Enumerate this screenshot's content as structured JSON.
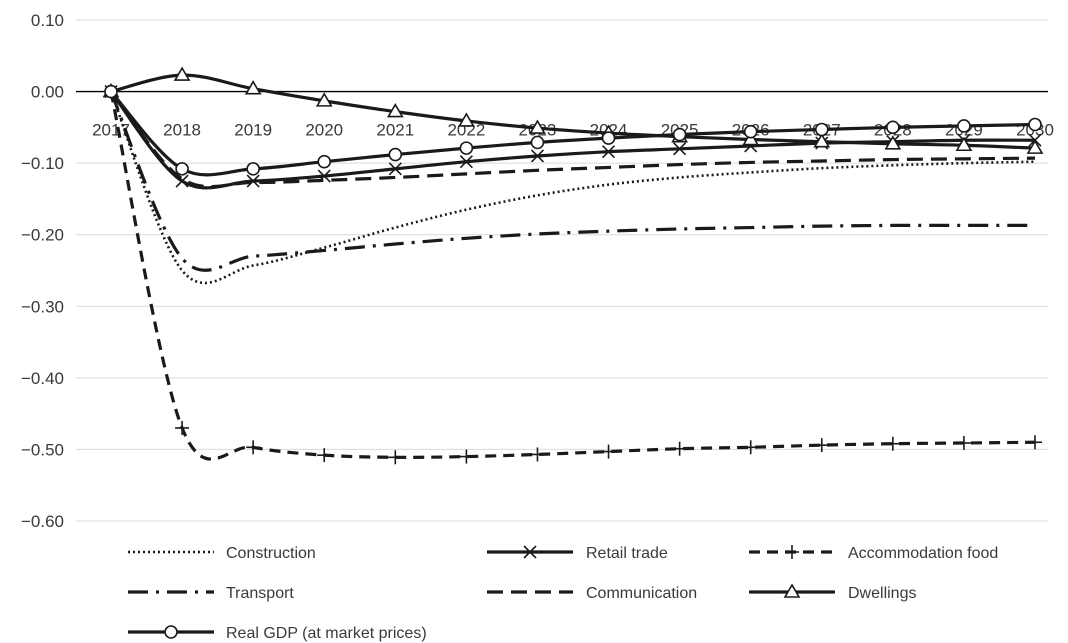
{
  "chart_data": {
    "type": "line",
    "title": "",
    "xlabel": "",
    "ylabel": "",
    "categories": [
      "2017",
      "2018",
      "2019",
      "2020",
      "2021",
      "2022",
      "2023",
      "2024",
      "2025",
      "2026",
      "2027",
      "2028",
      "2029",
      "2030"
    ],
    "ylim": [
      -0.6,
      0.1
    ],
    "yticks": [
      0.1,
      0.0,
      -0.1,
      -0.2,
      -0.3,
      -0.4,
      -0.5,
      -0.6
    ],
    "ytick_labels": [
      "0.10",
      "0.00",
      "−0.10",
      "−0.20",
      "−0.30",
      "−0.40",
      "−0.50",
      "−0.60"
    ],
    "grid": "horizontal",
    "zero_line": true,
    "legend_position": "bottom",
    "series": [
      {
        "name": "Construction",
        "style": "dotted",
        "marker": "none",
        "values": [
          0.0,
          -0.25,
          -0.243,
          -0.218,
          -0.19,
          -0.165,
          -0.145,
          -0.13,
          -0.12,
          -0.113,
          -0.107,
          -0.103,
          -0.1,
          -0.098
        ]
      },
      {
        "name": "Retail trade",
        "style": "solid",
        "marker": "x",
        "values": [
          0.0,
          -0.125,
          -0.125,
          -0.118,
          -0.108,
          -0.098,
          -0.09,
          -0.084,
          -0.08,
          -0.076,
          -0.072,
          -0.07,
          -0.068,
          -0.068
        ]
      },
      {
        "name": "Accommodation  food",
        "style": "dashed",
        "marker": "plus",
        "values": [
          0.0,
          -0.47,
          -0.497,
          -0.508,
          -0.511,
          -0.51,
          -0.507,
          -0.503,
          -0.499,
          -0.497,
          -0.494,
          -0.492,
          -0.491,
          -0.49
        ]
      },
      {
        "name": "Transport",
        "style": "dashdot",
        "marker": "none",
        "values": [
          0.0,
          -0.233,
          -0.23,
          -0.222,
          -0.213,
          -0.205,
          -0.199,
          -0.195,
          -0.192,
          -0.19,
          -0.188,
          -0.187,
          -0.187,
          -0.187
        ]
      },
      {
        "name": "Communication",
        "style": "longdash",
        "marker": "none",
        "values": [
          0.0,
          -0.122,
          -0.127,
          -0.124,
          -0.12,
          -0.115,
          -0.11,
          -0.106,
          -0.102,
          -0.099,
          -0.097,
          -0.095,
          -0.094,
          -0.093
        ]
      },
      {
        "name": "Dwellings",
        "style": "solid",
        "marker": "triangle",
        "values": [
          0.0,
          0.023,
          0.004,
          -0.013,
          -0.028,
          -0.041,
          -0.051,
          -0.058,
          -0.063,
          -0.067,
          -0.07,
          -0.073,
          -0.075,
          -0.079
        ]
      },
      {
        "name": "Real GDP (at market prices)",
        "style": "solid",
        "marker": "circle",
        "values": [
          0.0,
          -0.108,
          -0.108,
          -0.098,
          -0.088,
          -0.079,
          -0.071,
          -0.065,
          -0.06,
          -0.056,
          -0.053,
          -0.05,
          -0.048,
          -0.046
        ]
      }
    ]
  }
}
